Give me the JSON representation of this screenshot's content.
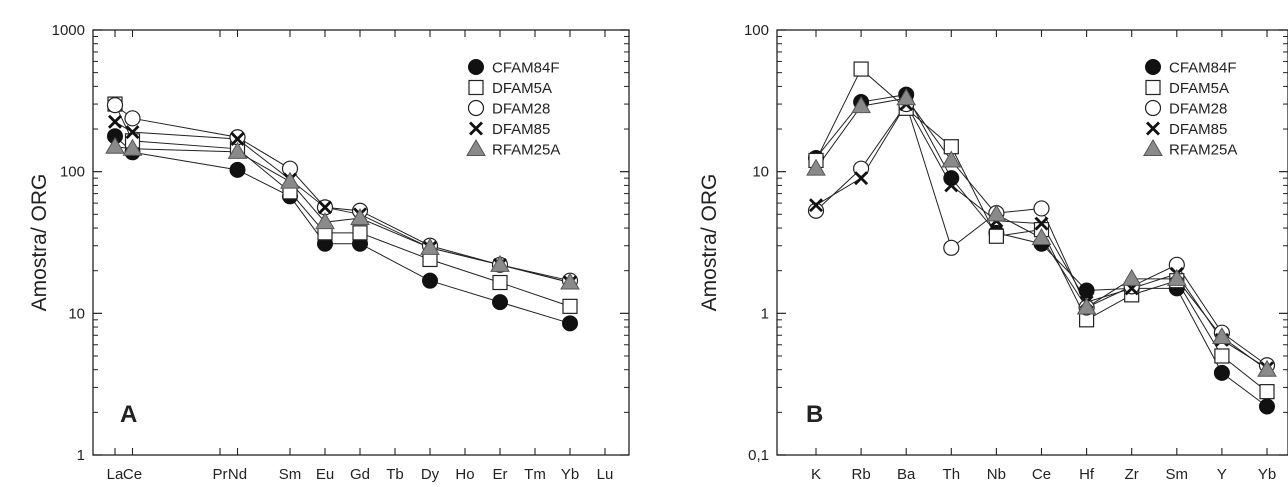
{
  "chart_data": [
    {
      "type": "line",
      "panel_label": "A",
      "ylabel": "Amostra/ ORG",
      "xlabel": "",
      "yscale": "log",
      "ylim": [
        1,
        1000
      ],
      "y_ticks": [
        "1",
        "10",
        "100",
        "1000"
      ],
      "categories": [
        "La",
        "Ce",
        "Pr",
        "Nd",
        "Sm",
        "Eu",
        "Gd",
        "Tb",
        "Dy",
        "Ho",
        "Er",
        "Tm",
        "Yb",
        "Lu"
      ],
      "category_positions": [
        57,
        57.5,
        60,
        60.5,
        62,
        63,
        64,
        65,
        66,
        67,
        68,
        69,
        70,
        71
      ],
      "grid": false,
      "legend_position": "top-right",
      "series": [
        {
          "name": "CFAM84F",
          "marker": "filled-circle",
          "values": [
            178,
            137,
            null,
            103,
            67,
            31,
            31,
            null,
            17,
            null,
            12,
            null,
            8.5,
            null
          ]
        },
        {
          "name": "DFAM5A",
          "marker": "open-square",
          "values": [
            300,
            165,
            null,
            145,
            72,
            37,
            37,
            null,
            24,
            null,
            16.5,
            null,
            11.2,
            null
          ]
        },
        {
          "name": "DFAM28",
          "marker": "open-circle",
          "values": [
            295,
            238,
            null,
            175,
            105,
            56,
            53,
            null,
            30,
            null,
            22,
            null,
            17,
            null
          ]
        },
        {
          "name": "DFAM85",
          "marker": "x-cross",
          "values": [
            225,
            190,
            null,
            170,
            88,
            56,
            50,
            null,
            29,
            null,
            22,
            null,
            16.5,
            null
          ]
        },
        {
          "name": "RFAM25A",
          "marker": "gray-triangle",
          "values": [
            150,
            145,
            null,
            138,
            85,
            44,
            47,
            null,
            29,
            null,
            22,
            null,
            16.5,
            null
          ]
        }
      ]
    },
    {
      "type": "line",
      "panel_label": "B",
      "ylabel": "Amostra/ ORG",
      "xlabel": "",
      "yscale": "log",
      "ylim": [
        0.1,
        100
      ],
      "y_ticks": [
        "0,1",
        "1",
        "10",
        "100"
      ],
      "categories": [
        "K",
        "Rb",
        "Ba",
        "Th",
        "Nb",
        "Ce",
        "Hf",
        "Zr",
        "Sm",
        "Y",
        "Yb"
      ],
      "grid": false,
      "legend_position": "top-right",
      "series": [
        {
          "name": "CFAM84F",
          "marker": "filled-circle",
          "values": [
            12.5,
            31,
            35,
            9,
            3.7,
            3.1,
            1.45,
            1.5,
            1.5,
            0.38,
            0.22
          ]
        },
        {
          "name": "DFAM5A",
          "marker": "open-square",
          "values": [
            12,
            53,
            28,
            15,
            3.5,
            3.9,
            0.9,
            1.35,
            1.7,
            0.5,
            0.28
          ]
        },
        {
          "name": "DFAM28",
          "marker": "open-circle",
          "values": [
            5.3,
            10.5,
            30,
            2.9,
            5.1,
            5.5,
            1.1,
            1.55,
            2.2,
            0.73,
            0.43
          ]
        },
        {
          "name": "DFAM85",
          "marker": "x-cross",
          "values": [
            5.8,
            9,
            30,
            8,
            4.5,
            4.3,
            1.2,
            1.5,
            1.9,
            0.65,
            0.41
          ]
        },
        {
          "name": "RFAM25A",
          "marker": "gray-triangle",
          "values": [
            10.5,
            29,
            33,
            12,
            5,
            3.4,
            1.1,
            1.75,
            1.75,
            0.68,
            0.4
          ]
        }
      ]
    }
  ]
}
